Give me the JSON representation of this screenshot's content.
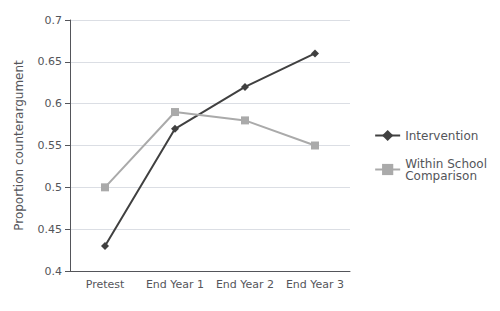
{
  "chart_data": {
    "type": "line",
    "categories": [
      "Pretest",
      "End Year 1",
      "End Year 2",
      "End Year 3"
    ],
    "series": [
      {
        "name": "Intervention",
        "color": "#404040",
        "marker": "diamond",
        "values": [
          0.43,
          0.57,
          0.62,
          0.66
        ]
      },
      {
        "name": "Within School\nComparison",
        "color": "#aaaaaa",
        "marker": "square",
        "values": [
          0.5,
          0.59,
          0.58,
          0.55
        ]
      }
    ],
    "ylabel": "Proportion counterargument",
    "ylim": [
      0.4,
      0.7
    ],
    "yticks": [
      0.4,
      0.45,
      0.5,
      0.55,
      0.6,
      0.65,
      0.7
    ],
    "grid": true,
    "legend": "right"
  }
}
